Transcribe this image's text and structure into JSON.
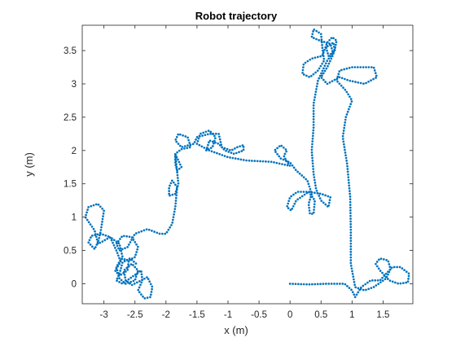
{
  "chart_data": {
    "type": "scatter",
    "title": "Robot trajectory",
    "xlabel": "x (m)",
    "ylabel": "y (m)",
    "xlim": [
      -3.35,
      1.98
    ],
    "ylim": [
      -0.3,
      3.88
    ],
    "xticks": [
      -3,
      -2.5,
      -2,
      -1.5,
      -1,
      -0.5,
      0,
      0.5,
      1,
      1.5
    ],
    "xtick_labels": [
      "-3",
      "-2.5",
      "-2",
      "-1.5",
      "-1",
      "-0.5",
      "0",
      "0.5",
      "1",
      "1.5"
    ],
    "yticks": [
      0,
      0.5,
      1,
      1.5,
      2,
      2.5,
      3,
      3.5
    ],
    "ytick_labels": [
      "0",
      "0.5",
      "1",
      "1.5",
      "2",
      "2.5",
      "3",
      "3.5"
    ],
    "grid": false,
    "legend": "none",
    "marker_color": "#0072BD",
    "series": [
      {
        "path": [
          [
            0.0,
            0.0
          ],
          [
            0.3,
            -0.01
          ],
          [
            0.6,
            0.0
          ],
          [
            0.88,
            0.0
          ],
          [
            1.0,
            -0.1
          ],
          [
            1.05,
            -0.2
          ],
          [
            1.15,
            -0.05
          ],
          [
            1.3,
            0.05
          ],
          [
            1.45,
            0.05
          ],
          [
            1.55,
            0.15
          ],
          [
            1.65,
            0.25
          ],
          [
            1.78,
            0.25
          ],
          [
            1.92,
            0.15
          ],
          [
            1.9,
            0.02
          ],
          [
            1.75,
            0.0
          ],
          [
            1.6,
            0.05
          ],
          [
            1.45,
            0.2
          ],
          [
            1.38,
            0.3
          ],
          [
            1.45,
            0.38
          ],
          [
            1.58,
            0.35
          ],
          [
            1.62,
            0.22
          ],
          [
            1.55,
            0.08
          ],
          [
            1.35,
            -0.05
          ],
          [
            1.2,
            -0.1
          ],
          [
            1.05,
            -0.05
          ],
          [
            0.98,
            0.3
          ],
          [
            0.98,
            0.8
          ],
          [
            0.97,
            1.3
          ],
          [
            0.92,
            1.8
          ],
          [
            0.85,
            2.2
          ],
          [
            0.9,
            2.5
          ],
          [
            1.0,
            2.75
          ],
          [
            0.9,
            2.9
          ],
          [
            0.75,
            3.05
          ],
          [
            0.8,
            3.2
          ],
          [
            1.0,
            3.25
          ],
          [
            1.35,
            3.25
          ],
          [
            1.4,
            3.1
          ],
          [
            1.2,
            3.0
          ],
          [
            0.95,
            3.05
          ],
          [
            0.8,
            3.1
          ],
          [
            0.6,
            3.0
          ],
          [
            0.5,
            3.1
          ],
          [
            0.6,
            3.25
          ],
          [
            0.7,
            3.45
          ],
          [
            0.65,
            3.6
          ],
          [
            0.48,
            3.65
          ],
          [
            0.35,
            3.7
          ],
          [
            0.38,
            3.82
          ],
          [
            0.5,
            3.75
          ],
          [
            0.52,
            3.55
          ],
          [
            0.55,
            3.35
          ],
          [
            0.45,
            3.2
          ],
          [
            0.32,
            3.1
          ],
          [
            0.2,
            3.15
          ],
          [
            0.22,
            3.3
          ],
          [
            0.35,
            3.38
          ],
          [
            0.52,
            3.42
          ],
          [
            0.6,
            3.62
          ],
          [
            0.68,
            3.7
          ],
          [
            0.75,
            3.65
          ],
          [
            0.72,
            3.5
          ],
          [
            0.62,
            3.42
          ],
          [
            0.58,
            3.55
          ],
          [
            0.7,
            3.62
          ],
          [
            0.72,
            3.5
          ],
          [
            0.6,
            3.35
          ],
          [
            0.45,
            3.05
          ],
          [
            0.38,
            2.7
          ],
          [
            0.38,
            2.35
          ],
          [
            0.35,
            2.0
          ],
          [
            0.38,
            1.65
          ],
          [
            0.42,
            1.42
          ],
          [
            0.5,
            1.25
          ],
          [
            0.62,
            1.15
          ],
          [
            0.65,
            1.3
          ],
          [
            0.5,
            1.35
          ],
          [
            0.3,
            1.38
          ],
          [
            0.1,
            1.25
          ],
          [
            0.02,
            1.1
          ],
          [
            -0.05,
            1.15
          ],
          [
            0.0,
            1.3
          ],
          [
            0.12,
            1.38
          ],
          [
            0.3,
            1.38
          ],
          [
            0.4,
            1.25
          ],
          [
            0.38,
            1.05
          ],
          [
            0.32,
            1.05
          ],
          [
            0.3,
            1.2
          ],
          [
            0.35,
            1.35
          ],
          [
            0.28,
            1.55
          ],
          [
            0.1,
            1.7
          ],
          [
            0.0,
            1.82
          ],
          [
            -0.15,
            1.88
          ],
          [
            -0.25,
            2.0
          ],
          [
            -0.15,
            2.08
          ],
          [
            -0.05,
            2.0
          ],
          [
            -0.1,
            1.92
          ],
          [
            -0.05,
            1.83
          ],
          [
            0.0,
            1.77
          ],
          [
            -0.3,
            1.83
          ],
          [
            -0.7,
            1.85
          ],
          [
            -1.0,
            1.9
          ],
          [
            -1.3,
            2.0
          ],
          [
            -1.5,
            2.1
          ],
          [
            -1.45,
            2.25
          ],
          [
            -1.3,
            2.3
          ],
          [
            -1.2,
            2.2
          ],
          [
            -1.25,
            2.05
          ],
          [
            -1.35,
            2.0
          ],
          [
            -1.3,
            2.15
          ],
          [
            -1.15,
            2.1
          ],
          [
            -1.05,
            2.0
          ],
          [
            -0.9,
            1.95
          ],
          [
            -0.75,
            2.0
          ],
          [
            -0.75,
            2.08
          ],
          [
            -0.85,
            2.05
          ],
          [
            -0.95,
            2.0
          ],
          [
            -1.1,
            2.05
          ],
          [
            -1.15,
            2.25
          ],
          [
            -1.3,
            2.25
          ],
          [
            -1.5,
            2.2
          ],
          [
            -1.55,
            2.1
          ],
          [
            -1.75,
            2.05
          ],
          [
            -1.85,
            2.15
          ],
          [
            -1.8,
            2.25
          ],
          [
            -1.65,
            2.2
          ],
          [
            -1.6,
            2.05
          ],
          [
            -1.75,
            2.02
          ],
          [
            -1.85,
            1.95
          ],
          [
            -1.85,
            1.8
          ],
          [
            -1.82,
            1.7
          ],
          [
            -1.75,
            1.75
          ],
          [
            -1.8,
            1.85
          ],
          [
            -1.85,
            1.95
          ],
          [
            -1.8,
            1.5
          ],
          [
            -1.85,
            1.35
          ],
          [
            -1.95,
            1.32
          ],
          [
            -1.95,
            1.45
          ],
          [
            -1.9,
            1.55
          ],
          [
            -1.82,
            1.45
          ],
          [
            -1.85,
            1.15
          ],
          [
            -1.9,
            0.9
          ],
          [
            -2.0,
            0.75
          ],
          [
            -2.1,
            0.75
          ],
          [
            -2.3,
            0.82
          ],
          [
            -2.5,
            0.75
          ],
          [
            -2.62,
            0.55
          ],
          [
            -2.75,
            0.5
          ],
          [
            -2.8,
            0.6
          ],
          [
            -2.7,
            0.72
          ],
          [
            -2.55,
            0.7
          ],
          [
            -2.45,
            0.55
          ],
          [
            -2.5,
            0.4
          ],
          [
            -2.6,
            0.35
          ],
          [
            -2.75,
            0.38
          ],
          [
            -2.8,
            0.5
          ],
          [
            -2.9,
            0.7
          ],
          [
            -3.05,
            0.75
          ],
          [
            -3.2,
            0.72
          ],
          [
            -3.25,
            0.62
          ],
          [
            -3.15,
            0.52
          ],
          [
            -3.1,
            0.62
          ],
          [
            -3.15,
            0.8
          ],
          [
            -3.3,
            1.0
          ],
          [
            -3.25,
            1.15
          ],
          [
            -3.1,
            1.2
          ],
          [
            -3.0,
            1.1
          ],
          [
            -3.05,
            0.8
          ],
          [
            -3.1,
            0.6
          ],
          [
            -3.05,
            0.62
          ],
          [
            -2.9,
            0.7
          ],
          [
            -2.75,
            0.6
          ],
          [
            -2.7,
            0.4
          ],
          [
            -2.75,
            0.3
          ],
          [
            -2.82,
            0.2
          ],
          [
            -2.75,
            0.12
          ],
          [
            -2.62,
            0.2
          ],
          [
            -2.6,
            0.35
          ],
          [
            -2.72,
            0.38
          ],
          [
            -2.8,
            0.25
          ],
          [
            -2.75,
            0.08
          ],
          [
            -2.65,
            0.0
          ],
          [
            -2.5,
            0.05
          ],
          [
            -2.45,
            0.2
          ],
          [
            -2.55,
            0.3
          ],
          [
            -2.68,
            0.2
          ],
          [
            -2.65,
            0.05
          ],
          [
            -2.55,
            -0.02
          ],
          [
            -2.4,
            0.05
          ],
          [
            -2.3,
            0.1
          ],
          [
            -2.22,
            -0.05
          ],
          [
            -2.25,
            -0.2
          ],
          [
            -2.35,
            -0.22
          ],
          [
            -2.45,
            -0.1
          ],
          [
            -2.38,
            0.05
          ],
          [
            -2.4,
            0.2
          ],
          [
            -2.55,
            0.1
          ],
          [
            -2.7,
            0.0
          ],
          [
            -2.8,
            0.05
          ],
          [
            -2.75,
            0.15
          ],
          [
            -2.7,
            0.32
          ],
          [
            -2.58,
            0.38
          ],
          [
            -2.48,
            0.3
          ]
        ]
      }
    ]
  }
}
